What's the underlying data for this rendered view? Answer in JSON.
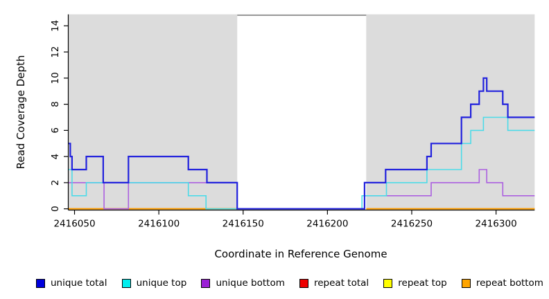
{
  "chart_data": {
    "type": "line",
    "subtype": "step-coverage",
    "title": "",
    "xlabel": "Coordinate in Reference Genome",
    "ylabel": "Read Coverage Depth",
    "xlim": [
      2416046.5,
      2416322.9
    ],
    "ylim": [
      -0.07,
      14.88
    ],
    "x_ticks": [
      2416050,
      2416100,
      2416150,
      2416200,
      2416250,
      2416300
    ],
    "x_tick_labels": [
      "2416050",
      "2416100",
      "2416150",
      "2416200",
      "2416250",
      "2416300"
    ],
    "y_ticks": [
      0,
      2,
      4,
      6,
      8,
      10,
      12,
      14
    ],
    "y_tick_labels": [
      "0",
      "2",
      "4",
      "6",
      "8",
      "10",
      "12",
      "14"
    ],
    "grid": false,
    "panel_background": "#dcdcdc",
    "highlight_region": {
      "x0": 2416146.5,
      "x1": 2416223,
      "fill": "#ffffff",
      "top_border_color": "#8a8a8a",
      "note": "white unmappable gap region; repeat-series lines hidden beneath it"
    },
    "series": [
      {
        "name": "unique total",
        "color": "#2121dd",
        "line_width": 2.2,
        "steps": [
          [
            2416046.5,
            5
          ],
          [
            2416047.5,
            4
          ],
          [
            2416048.5,
            3
          ],
          [
            2416057,
            4
          ],
          [
            2416067,
            2
          ],
          [
            2416082,
            4
          ],
          [
            2416117.5,
            3
          ],
          [
            2416128.5,
            2
          ],
          [
            2416146.5,
            0
          ],
          [
            2416222,
            2
          ],
          [
            2416234.5,
            3
          ],
          [
            2416259,
            4
          ],
          [
            2416261.5,
            5
          ],
          [
            2416279.5,
            7
          ],
          [
            2416285,
            8
          ],
          [
            2416290,
            9
          ],
          [
            2416292.5,
            10
          ],
          [
            2416294.5,
            9
          ],
          [
            2416304,
            8
          ],
          [
            2416307,
            7
          ]
        ]
      },
      {
        "name": "unique top",
        "color": "#4cdbe8",
        "line_width": 1.6,
        "steps": [
          [
            2416046.5,
            3
          ],
          [
            2416048.5,
            1
          ],
          [
            2416057,
            2
          ],
          [
            2416117.5,
            1
          ],
          [
            2416128,
            0
          ],
          [
            2416220.5,
            1
          ],
          [
            2416235,
            2
          ],
          [
            2416259,
            3
          ],
          [
            2416279.5,
            5
          ],
          [
            2416285,
            6
          ],
          [
            2416292.5,
            7
          ],
          [
            2416307,
            6
          ]
        ]
      },
      {
        "name": "unique bottom",
        "color": "#ab5fe0",
        "line_width": 1.6,
        "steps": [
          [
            2416046.5,
            2
          ],
          [
            2416067.5,
            0
          ],
          [
            2416082,
            2
          ],
          [
            2416146.5,
            0
          ],
          [
            2416222,
            1
          ],
          [
            2416261.5,
            2
          ],
          [
            2416290,
            3
          ],
          [
            2416294.5,
            2
          ],
          [
            2416304,
            1
          ]
        ]
      },
      {
        "name": "repeat total",
        "color": "#e01010",
        "line_width": 1.6,
        "steps": [
          [
            2416046.5,
            0
          ]
        ]
      },
      {
        "name": "repeat top",
        "color": "#f5f500",
        "line_width": 1.6,
        "steps": [
          [
            2416046.5,
            0
          ]
        ]
      },
      {
        "name": "repeat bottom",
        "color": "#ff9e00",
        "line_width": 2.0,
        "steps": [
          [
            2416046.5,
            0
          ]
        ]
      }
    ],
    "legend_position": "bottom"
  },
  "legend": {
    "items": [
      {
        "label": "unique total",
        "swatch": "#0000dd"
      },
      {
        "label": "unique top",
        "swatch": "#00eded"
      },
      {
        "label": "unique bottom",
        "swatch": "#9b1fd6"
      },
      {
        "label": "repeat total",
        "swatch": "#ee0000"
      },
      {
        "label": "repeat top",
        "swatch": "#ffff00"
      },
      {
        "label": "repeat bottom",
        "swatch": "#ffa500"
      }
    ]
  }
}
